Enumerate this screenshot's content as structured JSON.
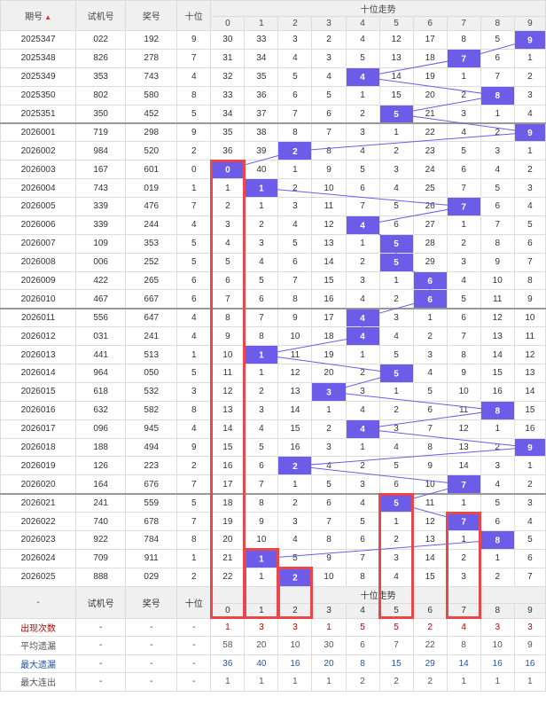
{
  "header": {
    "period_label": "期号",
    "trial_label": "试机号",
    "prize_label": "奖号",
    "tens_label": "十位",
    "trend_label": "十位走势",
    "digits": [
      "0",
      "1",
      "2",
      "3",
      "4",
      "5",
      "6",
      "7",
      "8",
      "9"
    ]
  },
  "footer": {
    "dash": "-",
    "trial_label": "试机号",
    "prize_label": "奖号",
    "tens_label": "十位",
    "trend_label": "十位走势",
    "digits": [
      "0",
      "1",
      "2",
      "3",
      "4",
      "5",
      "6",
      "7",
      "8",
      "9"
    ]
  },
  "stats": [
    {
      "label": "出现次数",
      "color": "#c00000",
      "values": [
        "1",
        "3",
        "3",
        "1",
        "5",
        "5",
        "2",
        "4",
        "3",
        "3"
      ]
    },
    {
      "label": "平均遗漏",
      "color": "#555555",
      "values": [
        "58",
        "20",
        "10",
        "30",
        "6",
        "7",
        "22",
        "8",
        "10",
        "9"
      ]
    },
    {
      "label": "最大遗漏",
      "color": "#2255aa",
      "values": [
        "36",
        "40",
        "16",
        "20",
        "8",
        "15",
        "29",
        "14",
        "16",
        "16"
      ]
    },
    {
      "label": "最大连出",
      "color": "#555555",
      "values": [
        "1",
        "1",
        "1",
        "1",
        "2",
        "2",
        "2",
        "1",
        "1",
        "1"
      ]
    }
  ],
  "chart_data": {
    "type": "table",
    "title": "十位走势",
    "columns": [
      "期号",
      "试机号",
      "奖号",
      "十位",
      "0",
      "1",
      "2",
      "3",
      "4",
      "5",
      "6",
      "7",
      "8",
      "9"
    ],
    "rows": [
      {
        "period": "2025347",
        "trial": "022",
        "prize": "192",
        "tens": 9,
        "cells": [
          30,
          33,
          3,
          2,
          4,
          12,
          17,
          8,
          5,
          9
        ]
      },
      {
        "period": "2025348",
        "trial": "826",
        "prize": "278",
        "tens": 7,
        "cells": [
          31,
          34,
          4,
          3,
          5,
          13,
          18,
          7,
          6,
          1
        ]
      },
      {
        "period": "2025349",
        "trial": "353",
        "prize": "743",
        "tens": 4,
        "cells": [
          32,
          35,
          5,
          4,
          4,
          14,
          19,
          1,
          7,
          2
        ]
      },
      {
        "period": "2025350",
        "trial": "802",
        "prize": "580",
        "tens": 8,
        "cells": [
          33,
          36,
          6,
          5,
          1,
          15,
          20,
          2,
          8,
          3
        ]
      },
      {
        "period": "2025351",
        "trial": "350",
        "prize": "452",
        "tens": 5,
        "cells": [
          34,
          37,
          7,
          6,
          2,
          5,
          21,
          3,
          1,
          4
        ]
      },
      {
        "period": "2026001",
        "trial": "719",
        "prize": "298",
        "tens": 9,
        "cells": [
          35,
          38,
          8,
          7,
          3,
          1,
          22,
          4,
          2,
          9
        ]
      },
      {
        "period": "2026002",
        "trial": "984",
        "prize": "520",
        "tens": 2,
        "cells": [
          36,
          39,
          2,
          8,
          4,
          2,
          23,
          5,
          3,
          1
        ]
      },
      {
        "period": "2026003",
        "trial": "167",
        "prize": "601",
        "tens": 0,
        "cells": [
          0,
          40,
          1,
          9,
          5,
          3,
          24,
          6,
          4,
          2
        ]
      },
      {
        "period": "2026004",
        "trial": "743",
        "prize": "019",
        "tens": 1,
        "cells": [
          1,
          1,
          2,
          10,
          6,
          4,
          25,
          7,
          5,
          3
        ]
      },
      {
        "period": "2026005",
        "trial": "339",
        "prize": "476",
        "tens": 7,
        "cells": [
          2,
          1,
          3,
          11,
          7,
          5,
          26,
          7,
          6,
          4
        ]
      },
      {
        "period": "2026006",
        "trial": "339",
        "prize": "244",
        "tens": 4,
        "cells": [
          3,
          2,
          4,
          12,
          4,
          6,
          27,
          1,
          7,
          5
        ]
      },
      {
        "period": "2026007",
        "trial": "109",
        "prize": "353",
        "tens": 5,
        "cells": [
          4,
          3,
          5,
          13,
          1,
          5,
          28,
          2,
          8,
          6
        ]
      },
      {
        "period": "2026008",
        "trial": "006",
        "prize": "252",
        "tens": 5,
        "cells": [
          5,
          4,
          6,
          14,
          2,
          5,
          29,
          3,
          9,
          7
        ]
      },
      {
        "period": "2026009",
        "trial": "422",
        "prize": "265",
        "tens": 6,
        "cells": [
          6,
          5,
          7,
          15,
          3,
          1,
          6,
          4,
          10,
          8
        ]
      },
      {
        "period": "2026010",
        "trial": "467",
        "prize": "667",
        "tens": 6,
        "cells": [
          7,
          6,
          8,
          16,
          4,
          2,
          6,
          5,
          11,
          9
        ]
      },
      {
        "period": "2026011",
        "trial": "556",
        "prize": "647",
        "tens": 4,
        "cells": [
          8,
          7,
          9,
          17,
          4,
          3,
          1,
          6,
          12,
          10
        ]
      },
      {
        "period": "2026012",
        "trial": "031",
        "prize": "241",
        "tens": 4,
        "cells": [
          9,
          8,
          10,
          18,
          4,
          4,
          2,
          7,
          13,
          11
        ]
      },
      {
        "period": "2026013",
        "trial": "441",
        "prize": "513",
        "tens": 1,
        "cells": [
          10,
          1,
          11,
          19,
          1,
          5,
          3,
          8,
          14,
          12
        ]
      },
      {
        "period": "2026014",
        "trial": "964",
        "prize": "050",
        "tens": 5,
        "cells": [
          11,
          1,
          12,
          20,
          2,
          5,
          4,
          9,
          15,
          13
        ]
      },
      {
        "period": "2026015",
        "trial": "618",
        "prize": "532",
        "tens": 3,
        "cells": [
          12,
          2,
          13,
          3,
          3,
          1,
          5,
          10,
          16,
          14
        ]
      },
      {
        "period": "2026016",
        "trial": "632",
        "prize": "582",
        "tens": 8,
        "cells": [
          13,
          3,
          14,
          1,
          4,
          2,
          6,
          11,
          8,
          15
        ]
      },
      {
        "period": "2026017",
        "trial": "096",
        "prize": "945",
        "tens": 4,
        "cells": [
          14,
          4,
          15,
          2,
          4,
          3,
          7,
          12,
          1,
          16
        ]
      },
      {
        "period": "2026018",
        "trial": "188",
        "prize": "494",
        "tens": 9,
        "cells": [
          15,
          5,
          16,
          3,
          1,
          4,
          8,
          13,
          2,
          9
        ]
      },
      {
        "period": "2026019",
        "trial": "126",
        "prize": "223",
        "tens": 2,
        "cells": [
          16,
          6,
          2,
          4,
          2,
          5,
          9,
          14,
          3,
          1
        ]
      },
      {
        "period": "2026020",
        "trial": "164",
        "prize": "676",
        "tens": 7,
        "cells": [
          17,
          7,
          1,
          5,
          3,
          6,
          10,
          7,
          4,
          2
        ]
      },
      {
        "period": "2026021",
        "trial": "241",
        "prize": "559",
        "tens": 5,
        "cells": [
          18,
          8,
          2,
          6,
          4,
          5,
          11,
          1,
          5,
          3
        ]
      },
      {
        "period": "2026022",
        "trial": "740",
        "prize": "678",
        "tens": 7,
        "cells": [
          19,
          9,
          3,
          7,
          5,
          1,
          12,
          7,
          6,
          4
        ]
      },
      {
        "period": "2026023",
        "trial": "922",
        "prize": "784",
        "tens": 8,
        "cells": [
          20,
          10,
          4,
          8,
          6,
          2,
          13,
          1,
          8,
          5
        ]
      },
      {
        "period": "2026024",
        "trial": "709",
        "prize": "911",
        "tens": 1,
        "cells": [
          21,
          1,
          5,
          9,
          7,
          3,
          14,
          2,
          1,
          6
        ]
      },
      {
        "period": "2026025",
        "trial": "888",
        "prize": "029",
        "tens": 2,
        "cells": [
          22,
          1,
          2,
          10,
          8,
          4,
          15,
          3,
          2,
          7
        ]
      }
    ]
  },
  "colors": {
    "hit": "#6c5ce7",
    "line": "#6c5ce7",
    "box": "#e8474c",
    "header_bg": "#f0f0f0",
    "sort_arrow": "#e03030"
  }
}
